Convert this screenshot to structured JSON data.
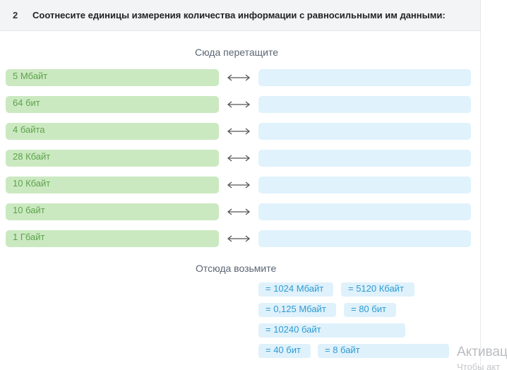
{
  "question": {
    "number": "2",
    "text": "Соотнесите единицы измерения количества информации с равносильными им данными:"
  },
  "drop_label": "Сюда перетащите",
  "take_label": "Отсюда возьмите",
  "left_items": [
    {
      "label": "5 Мбайт"
    },
    {
      "label": "64 бит"
    },
    {
      "label": "4 байта"
    },
    {
      "label": "28 Кбайт"
    },
    {
      "label": "10 Кбайт"
    },
    {
      "label": "10 байт"
    },
    {
      "label": "1 Гбайт"
    }
  ],
  "options": [
    {
      "label": "= 1024 Мбайт"
    },
    {
      "label": "= 5120 Кбайт"
    },
    {
      "label": "= 0,125 Мбайт"
    },
    {
      "label": "= 80 бит"
    },
    {
      "label": "= 10240 байт"
    },
    {
      "label": "= 40 бит"
    },
    {
      "label": "= 8 байт"
    }
  ],
  "watermark": {
    "title": "Активац",
    "subtitle": "Чтобы акт"
  },
  "colors": {
    "left_item_bg": "#cbe9c1",
    "left_item_text": "#5da24c",
    "drop_zone_bg": "#e0f2fc",
    "option_bg": "#dff1fb",
    "option_text": "#2d9bd3"
  },
  "icons": {
    "row_connector": "double-arrow-icon"
  }
}
